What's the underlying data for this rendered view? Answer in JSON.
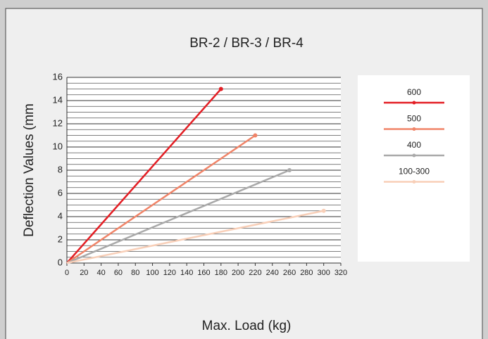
{
  "chart_data": {
    "type": "line",
    "title": "BR-2 / BR-3 / BR-4",
    "x_label": "Max. Load (kg)",
    "y_label": "Deflection Values (mm",
    "xlim": [
      0,
      320
    ],
    "xticks": [
      0,
      20,
      40,
      60,
      80,
      100,
      120,
      140,
      160,
      180,
      200,
      220,
      240,
      260,
      280,
      300,
      320
    ],
    "ylim": [
      0,
      16
    ],
    "yticks": [
      0,
      2,
      4,
      6,
      8,
      10,
      12,
      14,
      16
    ],
    "grid": true,
    "minor_grid": true,
    "legend": "right",
    "series": [
      {
        "name": "600",
        "color": "#e31e24",
        "x": [
          0,
          180
        ],
        "values": [
          0,
          15
        ]
      },
      {
        "name": "500",
        "color": "#f08468",
        "x": [
          0,
          220
        ],
        "values": [
          0,
          11
        ]
      },
      {
        "name": "400",
        "color": "#a9a9a9",
        "x": [
          0,
          260
        ],
        "values": [
          0,
          8
        ]
      },
      {
        "name": "100-300",
        "color": "#f8cfb8",
        "x": [
          0,
          300
        ],
        "values": [
          0,
          4.5
        ]
      }
    ]
  }
}
